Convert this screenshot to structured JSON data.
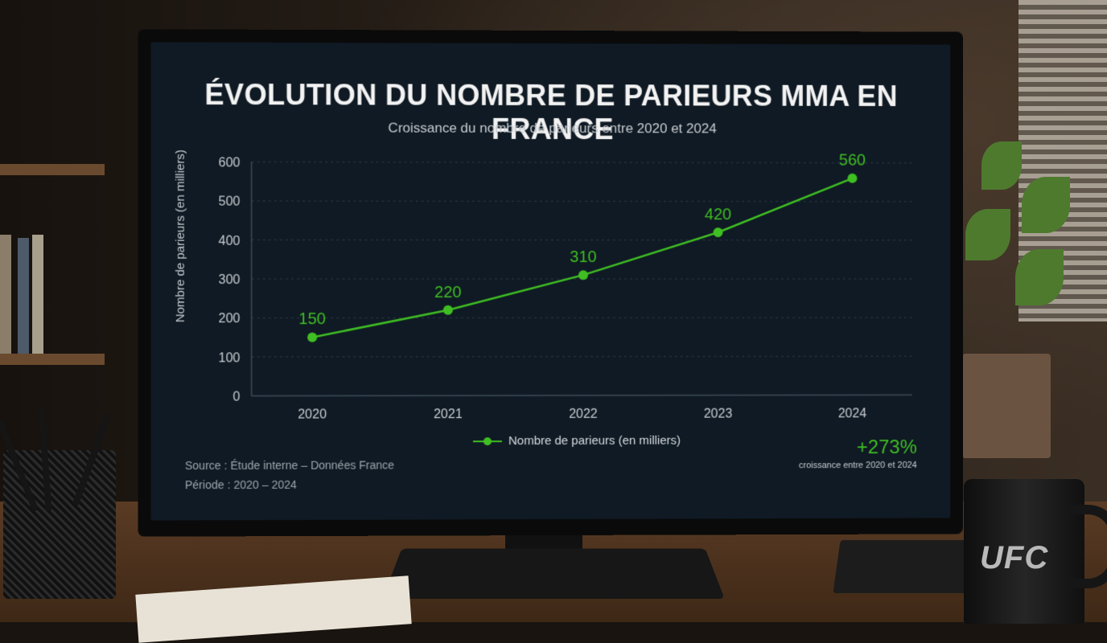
{
  "screen": {
    "title": "ÉVOLUTION DU NOMBRE DE PARIEURS MMA EN FRANCE",
    "subtitle": "Croissance du nombre de parieurs entre 2020 et 2024",
    "source_line": "Source : Étude interne – Données France",
    "period_line": "Période : 2020 – 2024",
    "growth_value": "+273%",
    "growth_caption": "croissance entre 2020 et 2024"
  },
  "chart_data": {
    "type": "line",
    "title": "ÉVOLUTION DU NOMBRE DE PARIEURS MMA EN FRANCE",
    "subtitle": "Croissance du nombre de parieurs entre 2020 et 2024",
    "xlabel": "",
    "ylabel": "Nombre de parieurs (en milliers)",
    "categories": [
      "2020",
      "2021",
      "2022",
      "2023",
      "2024"
    ],
    "series": [
      {
        "name": "Nombre de parieurs (en milliers)",
        "values": [
          150,
          220,
          310,
          420,
          560
        ],
        "color": "#3fbf22"
      }
    ],
    "ylim": [
      0,
      600
    ],
    "yticks": [
      "0",
      "100",
      "200",
      "300",
      "400",
      "500",
      "600"
    ],
    "grid": true,
    "legend": "bottom",
    "data_labels": true
  },
  "scene": {
    "mug_logo": "UFC"
  },
  "colors": {
    "accent": "#3fbf22",
    "screen_bg": "#0f1a24"
  }
}
